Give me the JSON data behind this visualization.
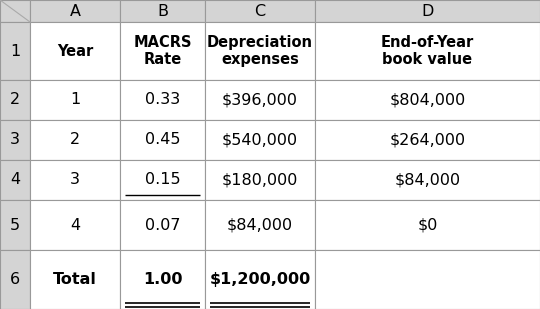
{
  "col_headers": [
    "A",
    "B",
    "C",
    "D"
  ],
  "row_numbers": [
    "1",
    "2",
    "3",
    "4",
    "5",
    "6"
  ],
  "header_row": {
    "A": "Year",
    "B": "MACRS\nRate",
    "C": "Depreciation\nexpenses",
    "D": "End-of-Year\nbook value"
  },
  "data_rows": [
    {
      "A": "1",
      "B": "0.33",
      "C": "$396,000",
      "D": "$804,000"
    },
    {
      "A": "2",
      "B": "0.45",
      "C": "$540,000",
      "D": "$264,000"
    },
    {
      "A": "3",
      "B": "0.15",
      "C": "$180,000",
      "D": "$84,000"
    },
    {
      "A": "4",
      "B": "0.07",
      "C": "$84,000",
      "D": "$0"
    },
    {
      "A": "Total",
      "B": "1.00",
      "C": "$1,200,000",
      "D": ""
    }
  ],
  "header_bg": "#d4d4d4",
  "cell_bg": "#ffffff",
  "grid_color": "#999999",
  "text_color": "#000000",
  "font_size": 11.5,
  "header_font_size": 10.5,
  "rownumber_font_size": 11.5,
  "col_header_font_size": 11.5
}
